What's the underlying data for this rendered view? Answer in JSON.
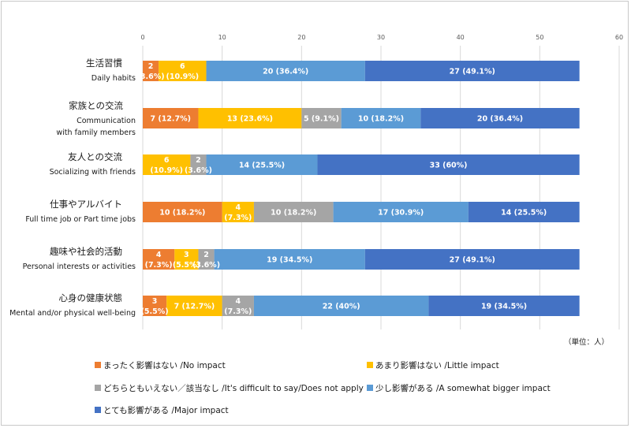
{
  "chart_data": {
    "type": "bar",
    "orientation": "horizontal",
    "stacked": true,
    "xlim": [
      0,
      60
    ],
    "xticks": [
      "0",
      "10",
      "20",
      "30",
      "40",
      "50",
      "60"
    ],
    "grid": true,
    "legend_position": "bottom",
    "unit_note": "（単位：人）",
    "categories": [
      {
        "jp": "生活習慣",
        "en": [
          "Daily habits"
        ]
      },
      {
        "jp": "家族との交流",
        "en": [
          "Communication",
          "with family members"
        ]
      },
      {
        "jp": "友人との交流",
        "en": [
          "Socializing with friends"
        ]
      },
      {
        "jp": "仕事やアルバイト",
        "en": [
          "Full time job or Part time jobs"
        ]
      },
      {
        "jp": "趣味や社会的活動",
        "en": [
          "Personal interests or activities"
        ]
      },
      {
        "jp": "心身の健康状態",
        "en": [
          "Mental and/or physical well-being"
        ]
      }
    ],
    "series": [
      {
        "name": "まったく影響はない /No impact",
        "color": "#ED7D31",
        "values": [
          2,
          7,
          0,
          10,
          4,
          3
        ],
        "labels": [
          [
            "2",
            "(3.6%)"
          ],
          [
            "7 (12.7%)"
          ],
          [],
          [
            "10 (18.2%)"
          ],
          [
            "4",
            "(7.3%)"
          ],
          [
            "3",
            "(5.5%)"
          ]
        ]
      },
      {
        "name": "あまり影響はない /Little impact",
        "color": "#FFC000",
        "values": [
          6,
          13,
          6,
          4,
          3,
          7
        ],
        "labels": [
          [
            "6",
            "(10.9%)"
          ],
          [
            "13 (23.6%)"
          ],
          [
            "6",
            "(10.9%)"
          ],
          [
            "4",
            "(7.3%)"
          ],
          [
            "3",
            "(5.5%)"
          ],
          [
            "7 (12.7%)"
          ]
        ]
      },
      {
        "name": "どちらともいえない／該当なし /It's difficult to say/Does not apply",
        "color": "#A5A5A5",
        "values": [
          0,
          5,
          2,
          10,
          2,
          4
        ],
        "labels": [
          [],
          [
            "5 (9.1%)"
          ],
          [
            "2",
            "(3.6%)"
          ],
          [
            "10 (18.2%)"
          ],
          [
            "2",
            "(3.6%)"
          ],
          [
            "4",
            "(7.3%)"
          ]
        ]
      },
      {
        "name": "少し影響がある /A somewhat bigger impact",
        "color": "#5B9BD5",
        "values": [
          20,
          10,
          14,
          17,
          19,
          22
        ],
        "labels": [
          [
            "20 (36.4%)"
          ],
          [
            "10 (18.2%)"
          ],
          [
            "14 (25.5%)"
          ],
          [
            "17 (30.9%)"
          ],
          [
            "19 (34.5%)"
          ],
          [
            "22 (40%)"
          ]
        ]
      },
      {
        "name": "とても影響がある /Major impact",
        "color": "#4472C4",
        "values": [
          27,
          20,
          33,
          14,
          27,
          19
        ],
        "labels": [
          [
            "27 (49.1%)"
          ],
          [
            "20 (36.4%)"
          ],
          [
            "33 (60%)"
          ],
          [
            "14 (25.5%)"
          ],
          [
            "27 (49.1%)"
          ],
          [
            "19 (34.5%)"
          ]
        ]
      }
    ]
  }
}
